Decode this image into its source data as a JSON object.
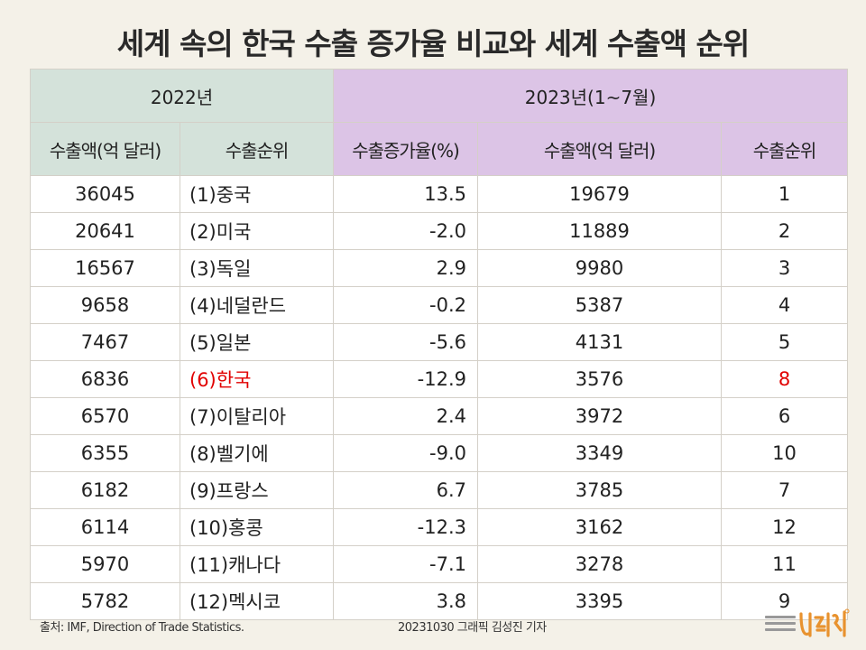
{
  "title": "세계 속의 한국 수출 증가율 비교와 세계 수출액 순위",
  "footer": {
    "source": "출처: IMF, Direction of Trade Statistics.",
    "credit": "20231030 그래픽 김성진 기자"
  },
  "colors": {
    "header_2022": "#d4e2da",
    "header_2023": "#dcc4e6",
    "highlight": "#e10000",
    "logo": "#e8922e"
  },
  "logo_icon": "newspaper-logo",
  "chart_data": {
    "type": "table",
    "title": "세계 속의 한국 수출 증가율 비교와 세계 수출액 순위",
    "groups": [
      {
        "label": "2022년",
        "columns": [
          "수출액(억 달러)",
          "수출순위"
        ]
      },
      {
        "label": "2023년(1~7월)",
        "columns": [
          "수출증가율(%)",
          "수출액(억 달러)",
          "수출순위"
        ]
      }
    ],
    "highlight_row": 5,
    "rows": [
      [
        "36045",
        "(1)중국",
        "13.5",
        "19679",
        "1"
      ],
      [
        "20641",
        "(2)미국",
        "-2.0",
        "11889",
        "2"
      ],
      [
        "16567",
        "(3)독일",
        "2.9",
        "9980",
        "3"
      ],
      [
        "9658",
        "(4)네덜란드",
        "-0.2",
        "5387",
        "4"
      ],
      [
        "7467",
        "(5)일본",
        "-5.6",
        "4131",
        "5"
      ],
      [
        "6836",
        "(6)한국",
        "-12.9",
        "3576",
        "8"
      ],
      [
        "6570",
        "(7)이탈리아",
        "2.4",
        "3972",
        "6"
      ],
      [
        "6355",
        "(8)벨기에",
        "-9.0",
        "3349",
        "10"
      ],
      [
        "6182",
        "(9)프랑스",
        "6.7",
        "3785",
        "7"
      ],
      [
        "6114",
        "(10)홍콩",
        "-12.3",
        "3162",
        "12"
      ],
      [
        "5970",
        "(11)캐나다",
        "-7.1",
        "3278",
        "11"
      ],
      [
        "5782",
        "(12)멕시코",
        "3.8",
        "3395",
        "9"
      ]
    ]
  }
}
